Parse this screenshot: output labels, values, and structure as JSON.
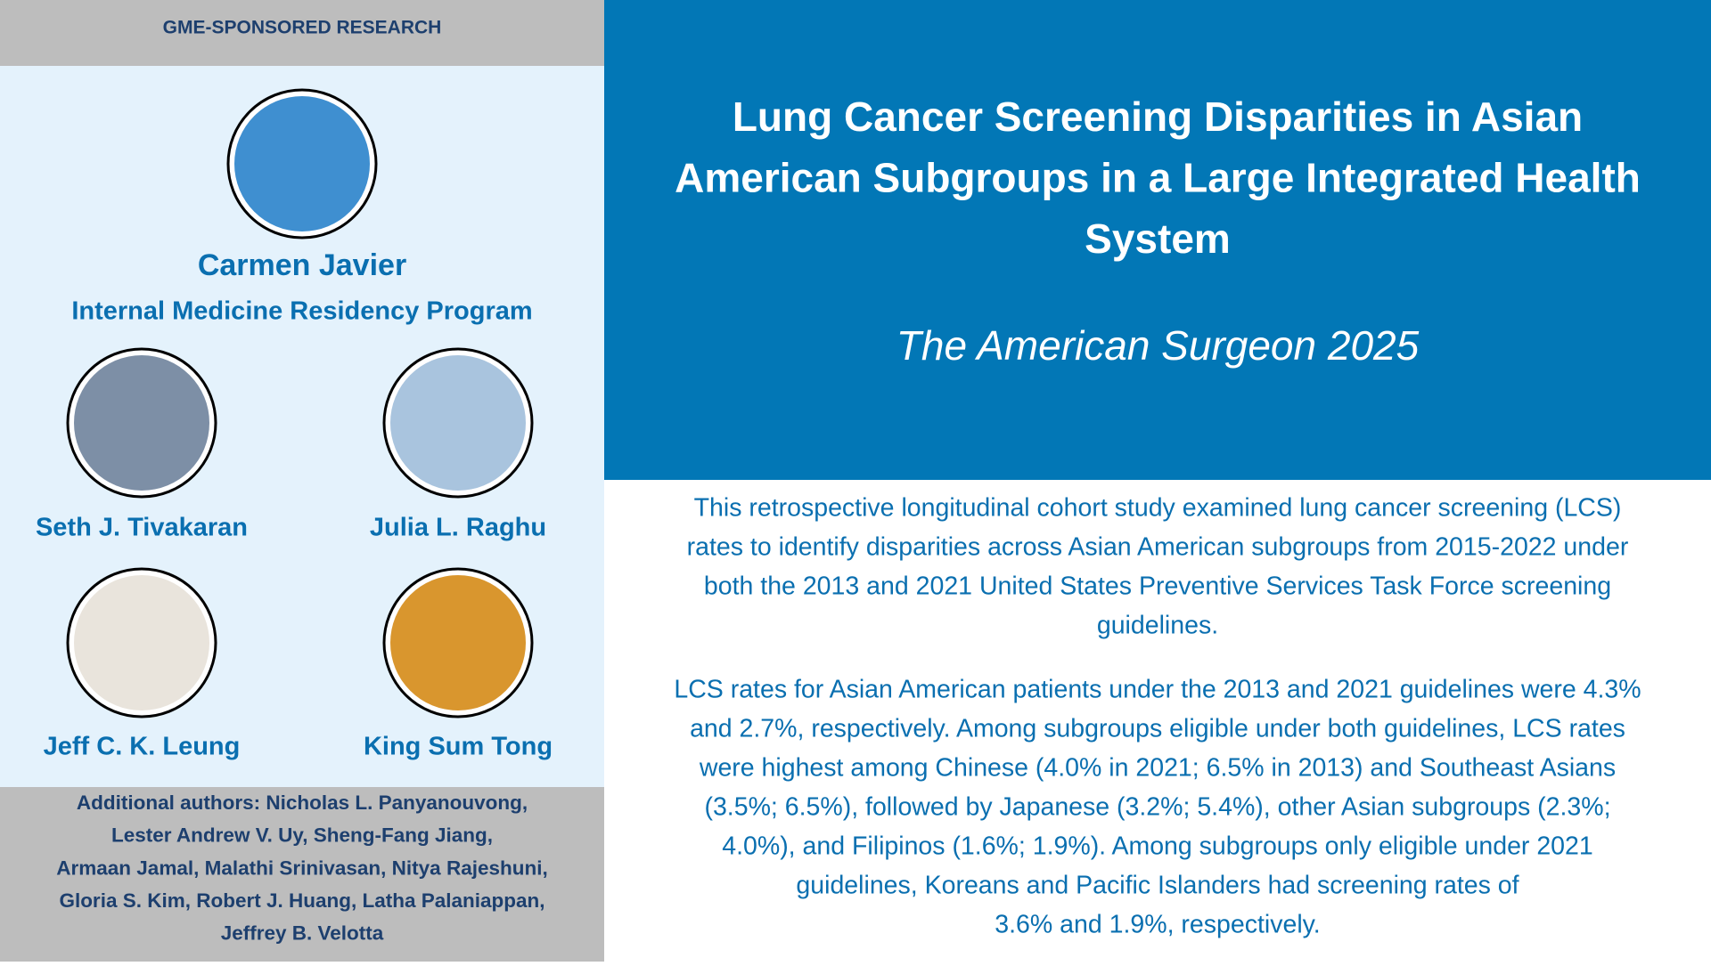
{
  "header": {
    "label": "GME-SPONSORED RESEARCH"
  },
  "featured": {
    "name": "Carmen Javier",
    "program": "Internal Medicine Residency Program"
  },
  "authors": [
    "Seth J. Tivakaran",
    "Julia L. Raghu",
    "Jeff C. K. Leung",
    "King Sum Tong"
  ],
  "additional_authors": [
    "Additional authors: Nicholas L. Panyanouvong,",
    "Lester Andrew V. Uy, Sheng-Fang Jiang,",
    "Armaan Jamal, Malathi Srinivasan, Nitya Rajeshuni,",
    "Gloria S. Kim, Robert J. Huang, Latha Palaniappan,",
    "Jeffrey B. Velotta"
  ],
  "paper": {
    "title": [
      "Lung Cancer Screening Disparities in Asian",
      "American Subgroups in a Large Integrated Health",
      "System"
    ],
    "journal": "The American Surgeon 2025"
  },
  "body": {
    "paragraphs": [
      {
        "lines": [
          "This retrospective longitudinal cohort study examined lung cancer screening (LCS)",
          "rates to identify disparities across Asian American subgroups from 2015-2022 under",
          "both the 2013 and 2021 United States Preventive Services Task Force screening",
          "guidelines."
        ]
      },
      {
        "lines": [
          "LCS rates for Asian American patients under the 2013 and 2021 guidelines were 4.3%",
          "and 2.7%, respectively. Among subgroups eligible under both guidelines, LCS rates",
          "were highest among Chinese (4.0% in 2021; 6.5% in 2013) and Southeast Asians",
          "(3.5%; 6.5%), followed by Japanese (3.2%; 5.4%), other Asian subgroups (2.3%;",
          "4.0%), and Filipinos (1.6%; 1.9%). Among subgroups only eligible under 2021",
          "guidelines, Koreans and Pacific Islanders had screening rates of",
          "3.6% and 1.9%, respectively."
        ]
      }
    ]
  }
}
